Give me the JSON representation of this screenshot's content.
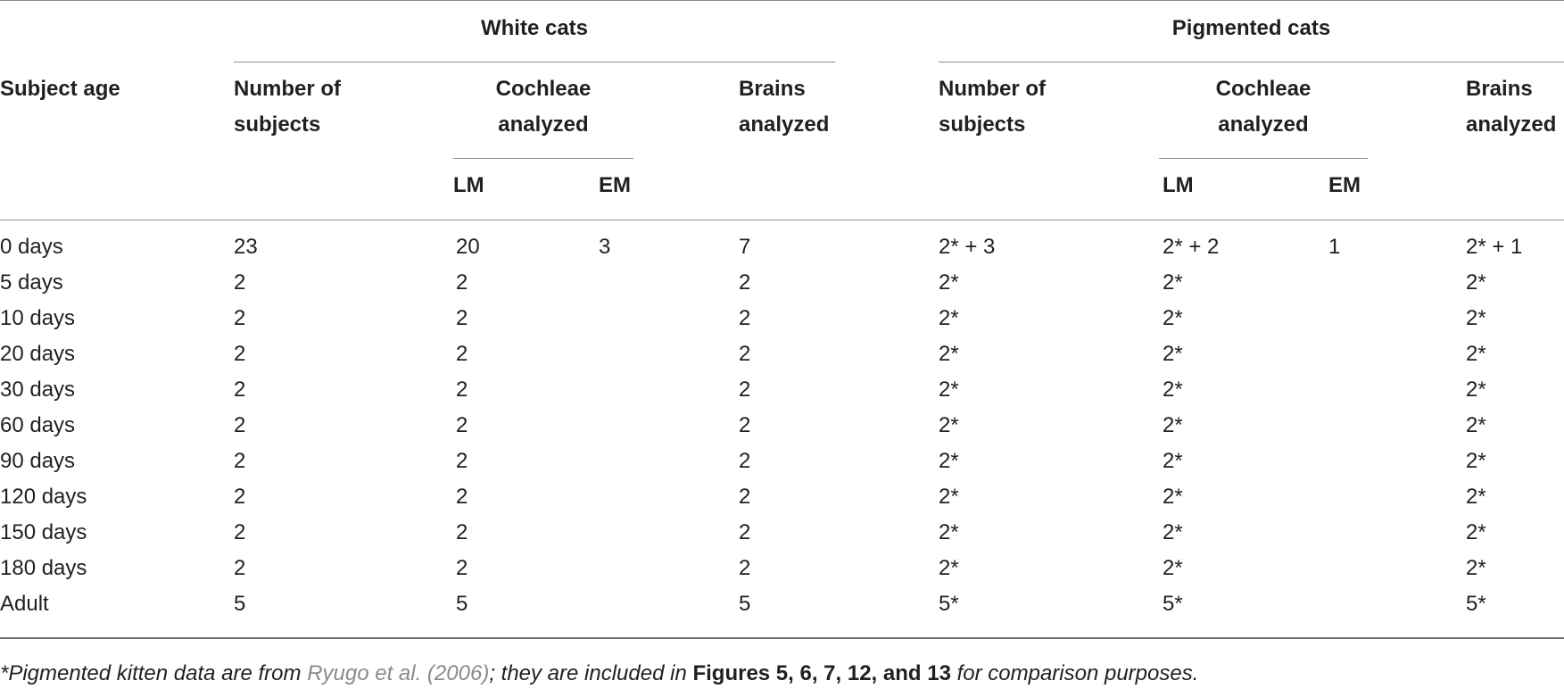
{
  "header": {
    "subject_age": "Subject age",
    "white_cats": "White cats",
    "pigmented_cats": "Pigmented cats",
    "number_of_subjects_line1": "Number of",
    "number_of_subjects_line2": "subjects",
    "cochleae_line1": "Cochleae",
    "cochleae_line2": "analyzed",
    "brains_line1": "Brains",
    "brains_line2": "analyzed",
    "lm": "LM",
    "em": "EM"
  },
  "rows": [
    {
      "age": "0 days",
      "w_subj": "23",
      "w_lm": "20",
      "w_em": "3",
      "w_brain": "7",
      "p_subj": "2* + 3",
      "p_lm": "2* + 2",
      "p_em": "1",
      "p_brain": "2* + 1"
    },
    {
      "age": "5 days",
      "w_subj": "2",
      "w_lm": "2",
      "w_em": "",
      "w_brain": "2",
      "p_subj": "2*",
      "p_lm": "2*",
      "p_em": "",
      "p_brain": "2*"
    },
    {
      "age": "10 days",
      "w_subj": "2",
      "w_lm": "2",
      "w_em": "",
      "w_brain": "2",
      "p_subj": "2*",
      "p_lm": "2*",
      "p_em": "",
      "p_brain": "2*"
    },
    {
      "age": "20 days",
      "w_subj": "2",
      "w_lm": "2",
      "w_em": "",
      "w_brain": "2",
      "p_subj": "2*",
      "p_lm": "2*",
      "p_em": "",
      "p_brain": "2*"
    },
    {
      "age": "30 days",
      "w_subj": "2",
      "w_lm": "2",
      "w_em": "",
      "w_brain": "2",
      "p_subj": "2*",
      "p_lm": "2*",
      "p_em": "",
      "p_brain": "2*"
    },
    {
      "age": "60 days",
      "w_subj": "2",
      "w_lm": "2",
      "w_em": "",
      "w_brain": "2",
      "p_subj": "2*",
      "p_lm": "2*",
      "p_em": "",
      "p_brain": "2*"
    },
    {
      "age": "90 days",
      "w_subj": "2",
      "w_lm": "2",
      "w_em": "",
      "w_brain": "2",
      "p_subj": "2*",
      "p_lm": "2*",
      "p_em": "",
      "p_brain": "2*"
    },
    {
      "age": "120 days",
      "w_subj": "2",
      "w_lm": "2",
      "w_em": "",
      "w_brain": "2",
      "p_subj": "2*",
      "p_lm": "2*",
      "p_em": "",
      "p_brain": "2*"
    },
    {
      "age": "150 days",
      "w_subj": "2",
      "w_lm": "2",
      "w_em": "",
      "w_brain": "2",
      "p_subj": "2*",
      "p_lm": "2*",
      "p_em": "",
      "p_brain": "2*"
    },
    {
      "age": "180 days",
      "w_subj": "2",
      "w_lm": "2",
      "w_em": "",
      "w_brain": "2",
      "p_subj": "2*",
      "p_lm": "2*",
      "p_em": "",
      "p_brain": "2*"
    },
    {
      "age": "Adult",
      "w_subj": "5",
      "w_lm": "5",
      "w_em": "",
      "w_brain": "5",
      "p_subj": "5*",
      "p_lm": "5*",
      "p_em": "",
      "p_brain": "5*"
    }
  ],
  "footnote": {
    "prefix": "*Pigmented kitten data are from ",
    "reference": "Ryugo et al. (2006)",
    "middle": "; they are included in ",
    "figures": "Figures 5, 6, 7, 12, and 13",
    "suffix": " for comparison purposes."
  }
}
